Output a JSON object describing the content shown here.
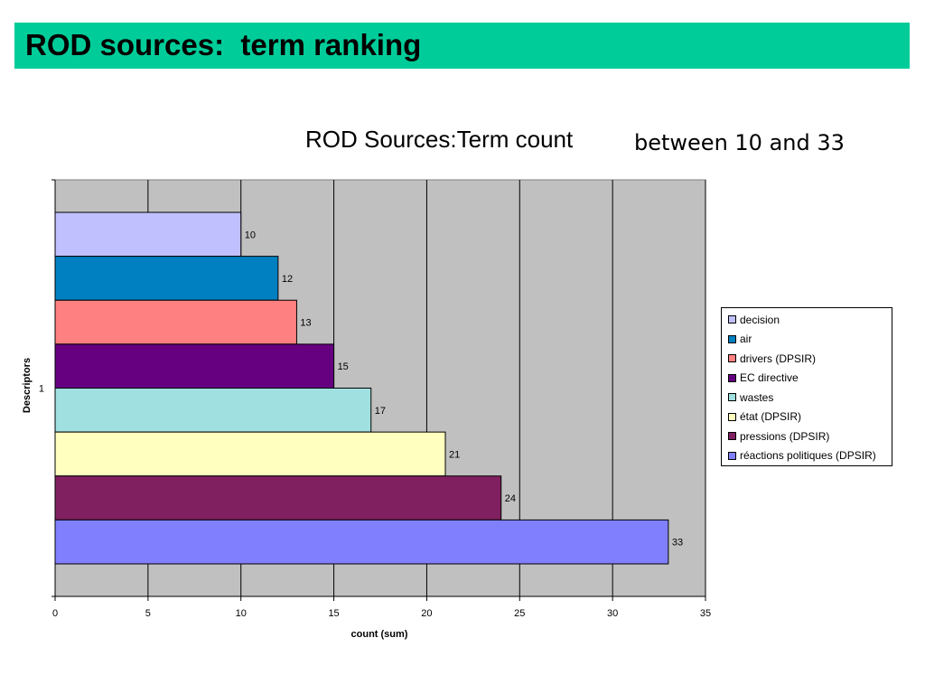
{
  "slide": {
    "title": "ROD sources:  term ranking",
    "note": "between 10 and 33"
  },
  "chart_data": {
    "type": "bar",
    "orientation": "horizontal",
    "title": "ROD Sources:Term count",
    "xlabel": "count (sum)",
    "ylabel": "Descriptors",
    "categories": [
      "1"
    ],
    "xlim": [
      0,
      35
    ],
    "xticks": [
      "0",
      "5",
      "10",
      "15",
      "20",
      "25",
      "30",
      "35"
    ],
    "grid": true,
    "legend_position": "right",
    "plot_background": "#C0C0C0",
    "series": [
      {
        "name": "decision",
        "values": [
          10
        ],
        "color": "#C0C0FF"
      },
      {
        "name": "air",
        "values": [
          12
        ],
        "color": "#0080C0"
      },
      {
        "name": "drivers (DPSIR)",
        "values": [
          13
        ],
        "color": "#FF8080"
      },
      {
        "name": "EC directive",
        "values": [
          15
        ],
        "color": "#660080"
      },
      {
        "name": "wastes",
        "values": [
          17
        ],
        "color": "#A0E0E0"
      },
      {
        "name": "état (DPSIR)",
        "values": [
          21
        ],
        "color": "#FFFFC0"
      },
      {
        "name": "pressions (DPSIR)",
        "values": [
          24
        ],
        "color": "#802060"
      },
      {
        "name": "réactions politiques (DPSIR)",
        "values": [
          33
        ],
        "color": "#8080FF"
      }
    ]
  },
  "colors": {
    "title_bar": "#00CC99"
  }
}
